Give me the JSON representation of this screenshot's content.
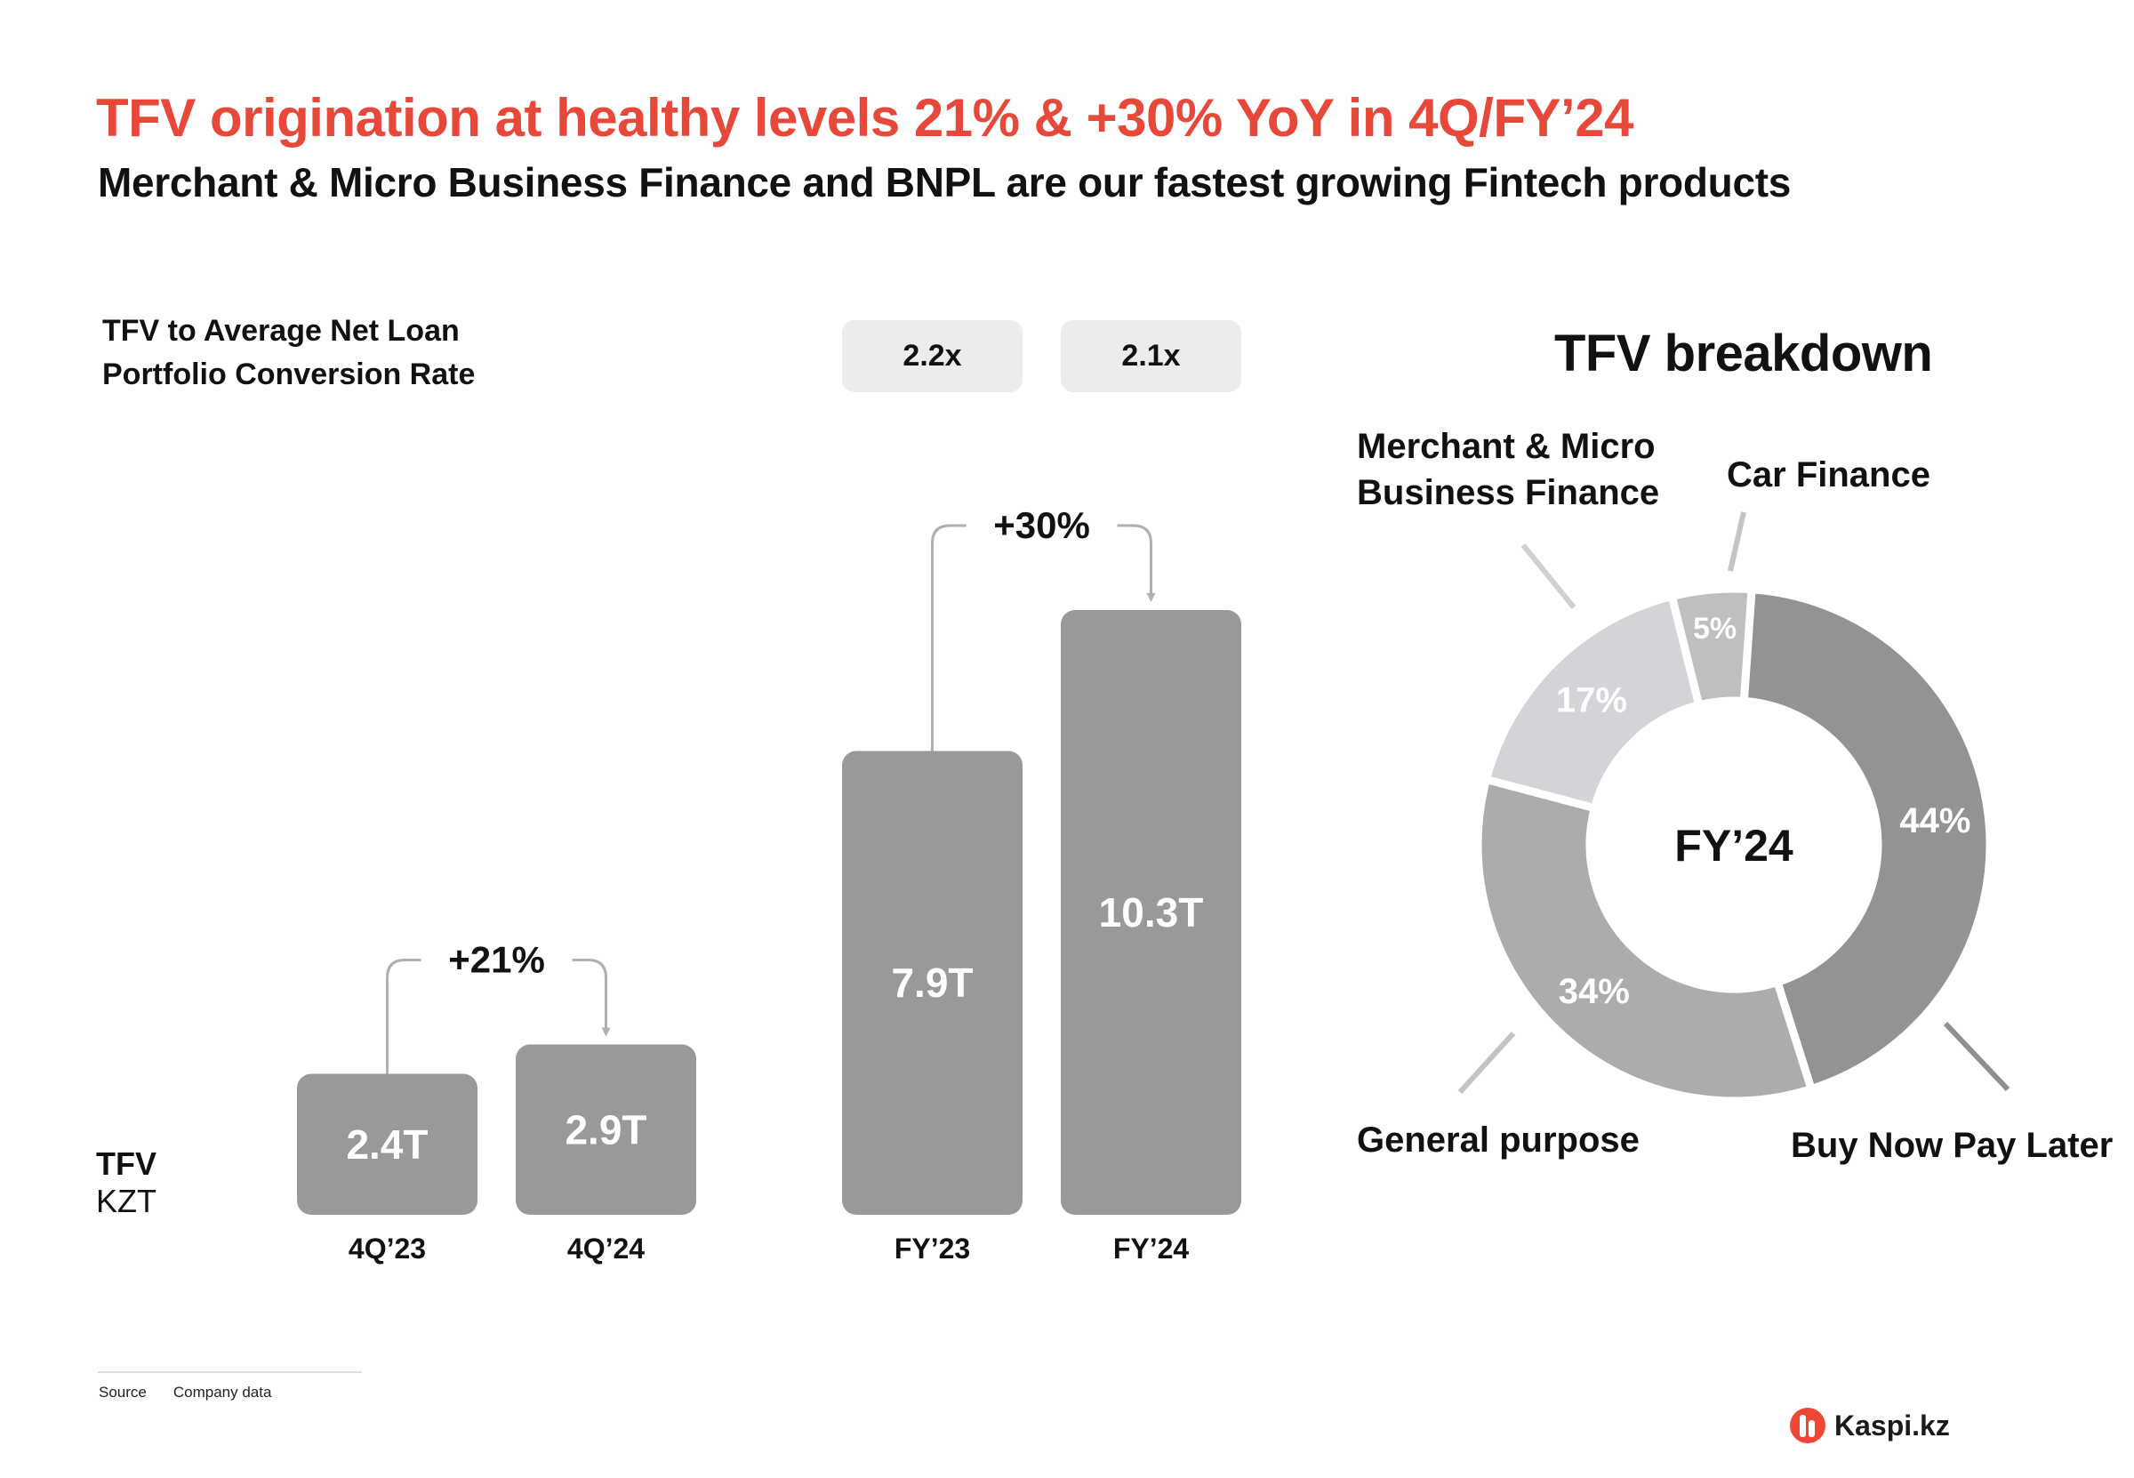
{
  "header": {
    "title": "TFV origination at healthy levels 21% & +30% YoY in 4Q/FY’24",
    "subtitle": "Merchant & Micro Business Finance and BNPL are our fastest growing Fintech products"
  },
  "conversion": {
    "label_line1": "TFV to Average Net Loan",
    "label_line2": "Portfolio Conversion Rate",
    "fy23": "2.2x",
    "fy24": "2.1x"
  },
  "axis_label": {
    "metric": "TFV",
    "unit": "KZT"
  },
  "footer": {
    "source_label": "Source",
    "source_value": "Company data"
  },
  "brand": {
    "name": "Kaspi.kz"
  },
  "colors": {
    "title_red": "#e8483a",
    "bar_gray": "#999999",
    "ratio_box": "#ececec",
    "bnpl": "#939393",
    "general_purpose": "#acacac",
    "merchant": "#d3d3d8",
    "car_finance": "#bfbfbf",
    "brand": "#f14635"
  },
  "chart_data": [
    {
      "type": "bar",
      "title": "TFV",
      "ylabel": "KZT",
      "categories": [
        "4Q’23",
        "4Q’24",
        "FY’23",
        "FY’24"
      ],
      "values": [
        2.4,
        2.9,
        7.9,
        10.3
      ],
      "value_labels": [
        "2.4T",
        "2.9T",
        "7.9T",
        "10.3T"
      ],
      "unit": "T",
      "ylim": [
        0,
        10.3
      ],
      "annotations": [
        {
          "from": "4Q’23",
          "to": "4Q’24",
          "text": "+21%"
        },
        {
          "from": "FY’23",
          "to": "FY’24",
          "text": "+30%"
        }
      ]
    },
    {
      "type": "pie",
      "title": "TFV breakdown",
      "center_label": "FY’24",
      "slices": [
        {
          "label": "Buy Now Pay Later",
          "value": 44,
          "value_label": "44%"
        },
        {
          "label": "General purpose",
          "value": 34,
          "value_label": "34%"
        },
        {
          "label": "Merchant & Micro Business Finance",
          "label_line1": "Merchant & Micro",
          "label_line2": "Business Finance",
          "value": 17,
          "value_label": "17%"
        },
        {
          "label": "Car Finance",
          "value": 5,
          "value_label": "5%"
        }
      ]
    }
  ]
}
